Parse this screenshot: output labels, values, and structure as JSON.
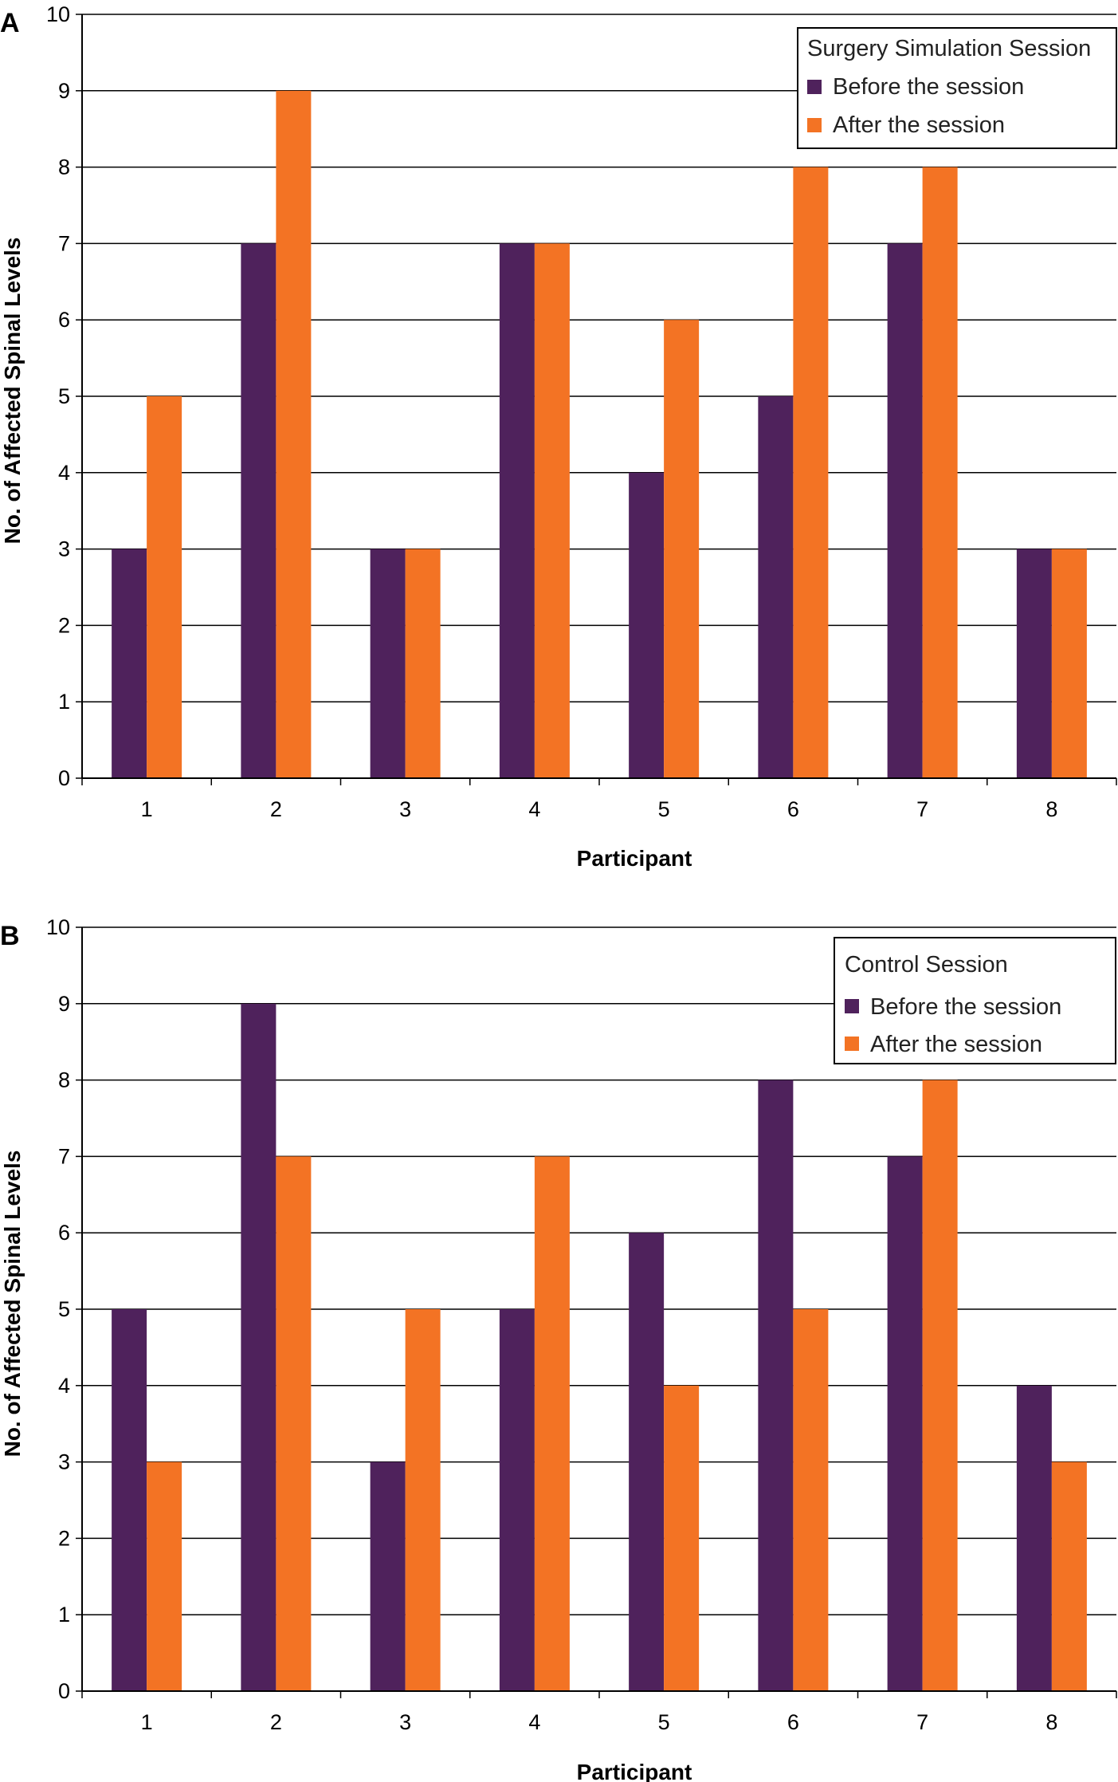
{
  "colors": {
    "before": "#4f225c",
    "after": "#f37324",
    "grid": "#000000",
    "axis": "#000000"
  },
  "chart_data": [
    {
      "type": "bar",
      "panel_label": "A",
      "legend_title": "Surgery Simulation Session",
      "legend_position": "top-right",
      "xlabel": "Participant",
      "ylabel": "No. of Affected Spinal Levels",
      "ylim": [
        0,
        10
      ],
      "yticks": [
        "0",
        "1",
        "2",
        "3",
        "4",
        "5",
        "6",
        "7",
        "8",
        "9",
        "10"
      ],
      "grid": true,
      "categories": [
        "1",
        "2",
        "3",
        "4",
        "5",
        "6",
        "7",
        "8"
      ],
      "series": [
        {
          "name": "Before the session",
          "color_key": "before",
          "values": [
            3,
            7,
            3,
            7,
            4,
            5,
            7,
            3
          ]
        },
        {
          "name": "After the session",
          "color_key": "after",
          "values": [
            5,
            9,
            3,
            7,
            6,
            8,
            8,
            3
          ]
        }
      ]
    },
    {
      "type": "bar",
      "panel_label": "B",
      "legend_title": "Control Session",
      "legend_position": "top-right",
      "xlabel": "Participant",
      "ylabel": "No. of Affected Spinal Levels",
      "ylim": [
        0,
        10
      ],
      "yticks": [
        "0",
        "1",
        "2",
        "3",
        "4",
        "5",
        "6",
        "7",
        "8",
        "9",
        "10"
      ],
      "grid": true,
      "categories": [
        "1",
        "2",
        "3",
        "4",
        "5",
        "6",
        "7",
        "8"
      ],
      "series": [
        {
          "name": "Before the session",
          "color_key": "before",
          "values": [
            5,
            9,
            3,
            5,
            6,
            8,
            7,
            4
          ]
        },
        {
          "name": "After the session",
          "color_key": "after",
          "values": [
            3,
            7,
            5,
            7,
            4,
            5,
            8,
            3
          ]
        }
      ]
    }
  ]
}
